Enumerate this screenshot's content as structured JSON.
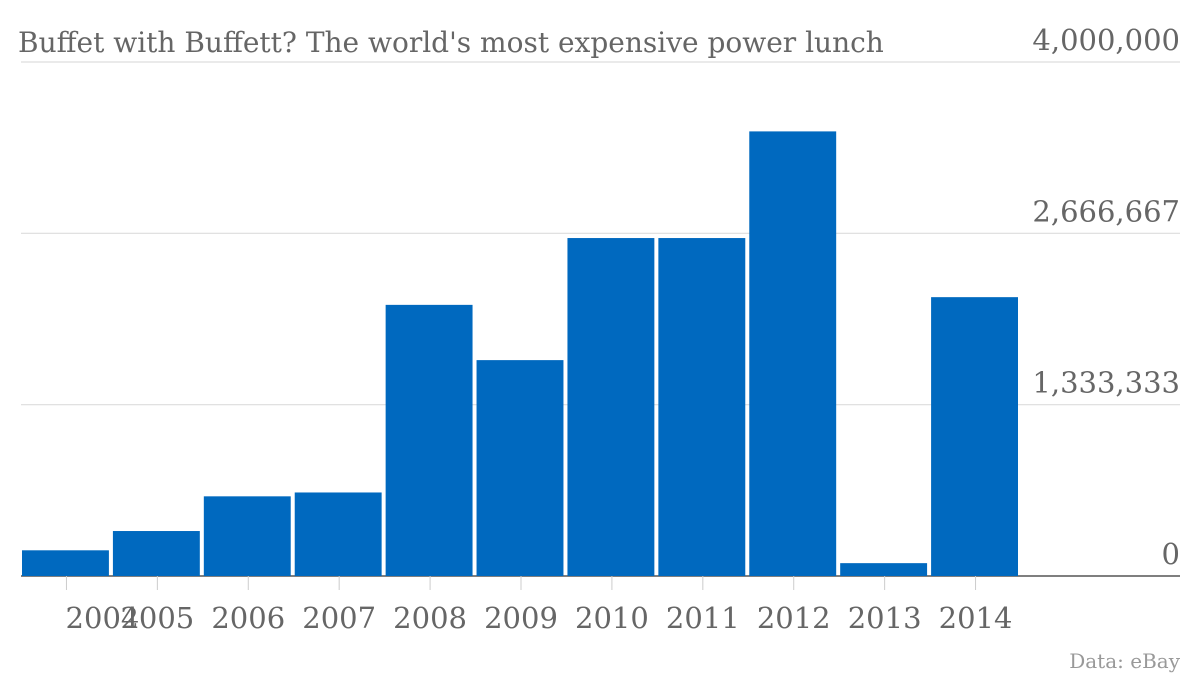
{
  "chart_data": {
    "type": "bar",
    "title": "Buffet with Buffett? The world's most expensive power lunch",
    "source": "Data: eBay",
    "categories": [
      "2004",
      "2005",
      "2006",
      "2007",
      "2008",
      "2009",
      "2010",
      "2011",
      "2012",
      "2013",
      "2014"
    ],
    "values": [
      200000,
      350000,
      620000,
      650000,
      2110000,
      1680000,
      2630000,
      2630000,
      3460000,
      100000,
      2170000
    ],
    "color": "#0069bf",
    "ylim": [
      0,
      4000000
    ],
    "yticks": [
      0,
      {
        "value": 1333333,
        "label": "1,333,333"
      },
      {
        "value": 2666667,
        "label": "2,666,667"
      },
      {
        "value": 4000000,
        "label": "4,000,000"
      }
    ],
    "grid": true
  }
}
